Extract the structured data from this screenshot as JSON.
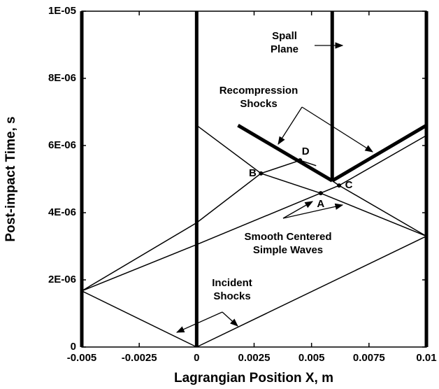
{
  "chart_data": {
    "type": "line",
    "x_label": "Lagrangian Position X, m",
    "y_label": "Post-impact Time, s",
    "xlim": [
      -0.005,
      0.01
    ],
    "ylim": [
      0,
      1e-05
    ],
    "xticks": [
      -0.005,
      -0.0025,
      0,
      0.0025,
      0.005,
      0.0075,
      0.01
    ],
    "yticks": [
      0,
      {
        "value": 2e-06,
        "label": "2E-06"
      },
      {
        "value": 4e-06,
        "label": "4E-06"
      },
      {
        "value": 6e-06,
        "label": "6E-06"
      },
      {
        "value": 8e-06,
        "label": "8E-06"
      },
      {
        "value": 1e-05,
        "label": "1E-05"
      }
    ],
    "color": "#000000",
    "interfaces": [
      {
        "x": [
          -0.005,
          -0.005
        ],
        "y": [
          0,
          1e-05
        ]
      },
      {
        "x": [
          0,
          0
        ],
        "y": [
          0,
          1e-05
        ]
      },
      {
        "x": [
          0.0059,
          0.0059
        ],
        "y": [
          4.95e-06,
          1e-05
        ]
      },
      {
        "x": [
          0.01,
          0.01
        ],
        "y": [
          0,
          1e-05
        ]
      }
    ],
    "waves": [
      {
        "x": [
          0,
          -0.005
        ],
        "y": [
          0,
          1.67e-06
        ]
      },
      {
        "x": [
          0,
          0.01
        ],
        "y": [
          0,
          3.3e-06
        ]
      },
      {
        "x": [
          -0.005,
          0,
          0.0028,
          0.0045,
          0.0052
        ],
        "y": [
          1.67e-06,
          3.7e-06,
          5.17e-06,
          5.56e-06,
          5.4e-06
        ]
      },
      {
        "x": [
          -0.005,
          0,
          0.0062,
          0.01
        ],
        "y": [
          1.67e-06,
          3.05e-06,
          4.81e-06,
          6.3e-06
        ]
      },
      {
        "x": [
          0,
          0.0028,
          0.0054,
          0.01
        ],
        "y": [
          6.6e-06,
          5.17e-06,
          4.58e-06,
          3.3e-06
        ]
      },
      {
        "x": [
          0.01,
          0.0062,
          0.0059
        ],
        "y": [
          3.3e-06,
          4.81e-06,
          4.95e-06
        ]
      }
    ],
    "recompression": [
      {
        "x": [
          0.0018,
          0.0059
        ],
        "y": [
          6.6e-06,
          4.95e-06
        ]
      },
      {
        "x": [
          0.0059,
          0.01
        ],
        "y": [
          4.95e-06,
          6.6e-06
        ]
      }
    ],
    "points": [
      {
        "label": "A",
        "x": 0.0054,
        "y": 4.58e-06
      },
      {
        "label": "B",
        "x": 0.0028,
        "y": 5.17e-06
      },
      {
        "label": "C",
        "x": 0.0062,
        "y": 4.81e-06
      },
      {
        "label": "D",
        "x": 0.0045,
        "y": 5.56e-06
      }
    ],
    "annotations": [
      {
        "lines": [
          "Spall",
          "Plane"
        ]
      },
      {
        "lines": [
          "Recompression",
          "Shocks"
        ]
      },
      {
        "lines": [
          "Smooth Centered",
          "Simple Waves"
        ]
      },
      {
        "lines": [
          "Incident",
          "Shocks"
        ]
      }
    ]
  }
}
